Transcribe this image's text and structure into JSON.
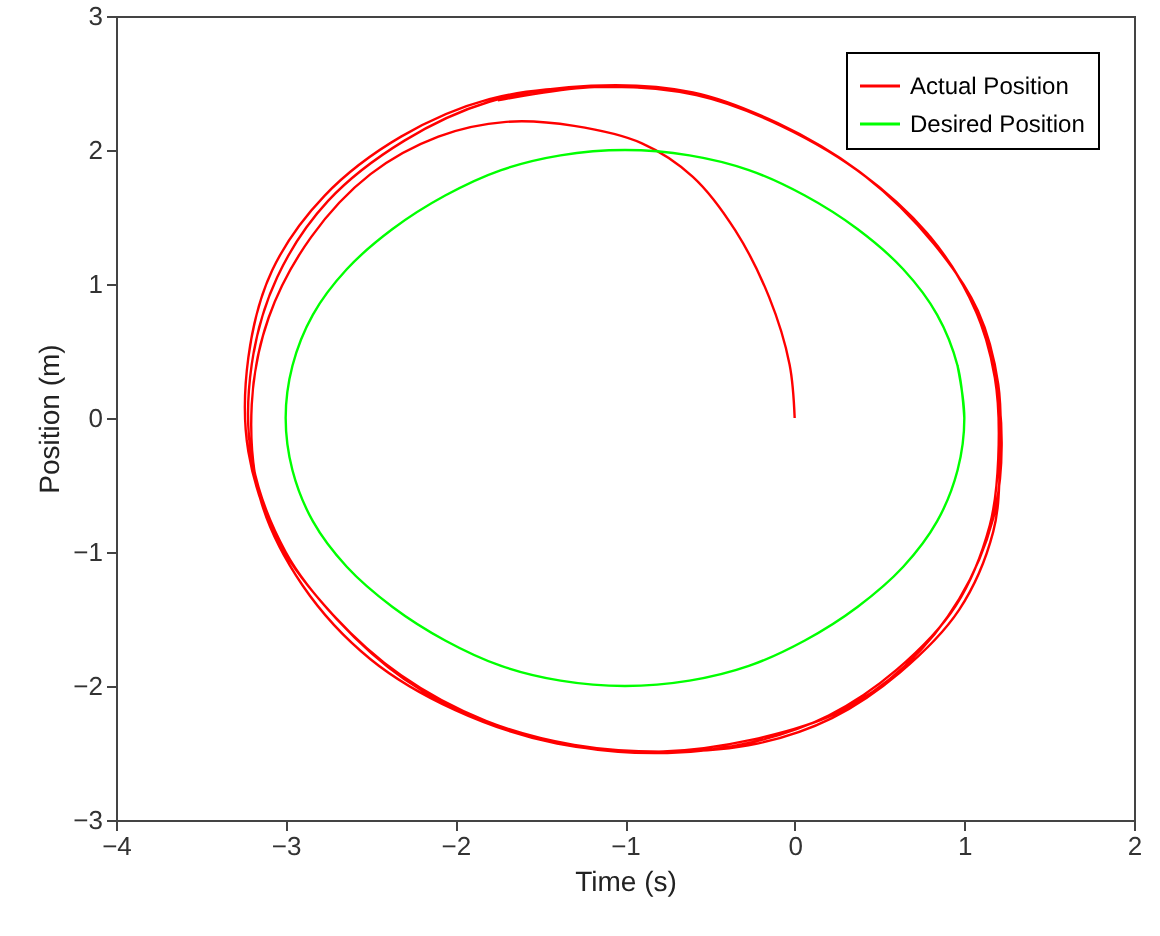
{
  "chart_data": {
    "type": "line",
    "xlabel": "Time (s)",
    "ylabel": "Position (m)",
    "xlim": [
      -4,
      2
    ],
    "xticks": [
      -4,
      -3,
      -2,
      -1,
      0,
      1,
      2
    ],
    "ylim": [
      -3,
      3
    ],
    "yticks": [
      -3,
      -2,
      -1,
      0,
      1,
      2,
      3
    ],
    "legend": "top right",
    "line_style": "solid",
    "series": [
      {
        "name": "Actual Position",
        "color": "#ff0000",
        "x": [
          0,
          -0.03,
          -0.15,
          -0.35,
          -0.6,
          -0.9,
          -1.3,
          -1.7,
          -2.1,
          -2.5,
          -2.85,
          -3.1,
          -3.2,
          -3.15,
          -2.9,
          -2.5,
          -2.0,
          -1.4,
          -0.8,
          -0.25,
          0.25,
          0.65,
          0.97,
          1.17,
          1.22,
          1.17,
          1.03,
          0.78,
          0.38,
          -0.1,
          -0.6,
          -1.2,
          -1.8,
          -2.3,
          -2.75,
          -3.05,
          -3.2,
          -3.2,
          -3.0,
          -2.7,
          -2.3,
          -1.8,
          -1.3,
          -0.75,
          -0.25,
          0.2,
          0.6,
          0.95,
          1.15,
          1.2,
          1.18,
          1.05,
          0.8,
          0.4,
          -0.1,
          -0.6,
          -1.2,
          -1.8,
          -2.32,
          -2.77,
          -3.08,
          -3.22,
          -3.22,
          -3.03,
          -2.72,
          -2.32,
          -1.82,
          -1.3,
          -0.73,
          -0.22,
          0.22,
          0.62,
          0.97,
          1.17,
          1.21,
          1.2,
          1.08,
          0.82,
          0.42,
          -0.08,
          -0.58,
          -1.18,
          -1.75
        ],
        "values": [
          0,
          0.4,
          0.9,
          1.4,
          1.8,
          2.05,
          2.18,
          2.21,
          2.1,
          1.82,
          1.35,
          0.75,
          0.1,
          -0.6,
          -1.25,
          -1.8,
          -2.18,
          -2.43,
          -2.49,
          -2.4,
          -2.2,
          -1.85,
          -1.35,
          -0.75,
          -0.2,
          0.4,
          0.9,
          1.38,
          1.84,
          2.2,
          2.43,
          2.48,
          2.36,
          2.07,
          1.62,
          1.05,
          0.4,
          -0.3,
          -1.0,
          -1.5,
          -1.95,
          -2.28,
          -2.45,
          -2.5,
          -2.42,
          -2.22,
          -1.88,
          -1.4,
          -0.8,
          -0.3,
          0.3,
          0.85,
          1.35,
          1.82,
          2.2,
          2.42,
          2.47,
          2.38,
          2.1,
          1.66,
          1.1,
          0.45,
          -0.25,
          -0.95,
          -1.47,
          -1.92,
          -2.26,
          -2.44,
          -2.49,
          -2.43,
          -2.24,
          -1.9,
          -1.43,
          -0.85,
          -0.35,
          0.25,
          0.8,
          1.3,
          1.8,
          2.18,
          2.41,
          2.47,
          2.37
        ]
      },
      {
        "name": "Desired Position",
        "color": "#00ff00",
        "x": [
          1,
          0.96,
          0.84,
          0.64,
          0.37,
          0.06,
          -0.27,
          -0.62,
          -1.0,
          -1.38,
          -1.73,
          -2.06,
          -2.37,
          -2.64,
          -2.84,
          -2.96,
          -3.0,
          -2.96,
          -2.84,
          -2.64,
          -2.37,
          -2.06,
          -1.73,
          -1.38,
          -1.0,
          -0.62,
          -0.27,
          0.06,
          0.37,
          0.64,
          0.84,
          0.96,
          1,
          0.96
        ],
        "values": [
          0,
          0.39,
          0.77,
          1.11,
          1.41,
          1.66,
          1.85,
          1.96,
          2.0,
          1.96,
          1.85,
          1.66,
          1.41,
          1.11,
          0.77,
          0.39,
          0,
          -0.39,
          -0.77,
          -1.11,
          -1.41,
          -1.66,
          -1.85,
          -1.96,
          -2.0,
          -1.96,
          -1.85,
          -1.66,
          -1.41,
          -1.11,
          -0.77,
          -0.39,
          0,
          0.39
        ]
      }
    ]
  }
}
